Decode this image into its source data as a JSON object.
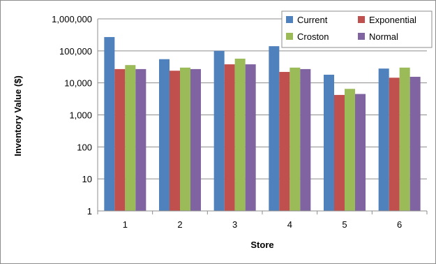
{
  "chart_data": {
    "type": "bar",
    "title": "",
    "xlabel": "Store",
    "ylabel": "Inventory Value ($)",
    "yscale": "log",
    "ylim": [
      1,
      1000000
    ],
    "y_ticks": [
      1,
      10,
      100,
      1000,
      10000,
      100000,
      1000000
    ],
    "y_tick_labels": [
      "1",
      "10",
      "100",
      "1,000",
      "10,000",
      "100,000",
      "1,000,000"
    ],
    "categories": [
      "1",
      "2",
      "3",
      "4",
      "5",
      "6"
    ],
    "grid": "horizontal",
    "legend_position": "top-right",
    "series": [
      {
        "name": "Current",
        "color": "#4f81bd",
        "values": [
          270000,
          55000,
          100000,
          140000,
          18000,
          28000
        ]
      },
      {
        "name": "Exponential",
        "color": "#c0504d",
        "values": [
          27000,
          24000,
          38000,
          22000,
          4200,
          14500
        ]
      },
      {
        "name": "Croston",
        "color": "#9bbb59",
        "values": [
          36000,
          30000,
          57000,
          30000,
          6500,
          30000
        ]
      },
      {
        "name": "Normal",
        "color": "#8064a2",
        "values": [
          27000,
          27000,
          38000,
          27000,
          4500,
          15500
        ]
      }
    ]
  }
}
